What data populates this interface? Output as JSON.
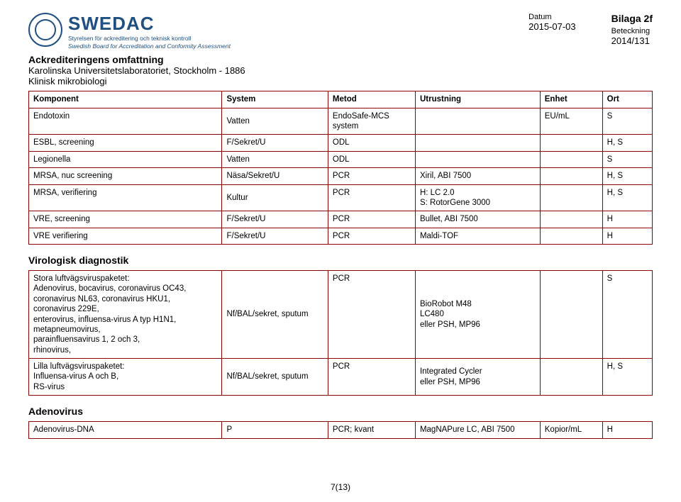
{
  "header": {
    "logo_big": "SWEDAC",
    "logo_sub1": "Styrelsen för ackreditering och teknisk kontroll",
    "logo_sub2": "Swedish Board for Accreditation and Conformity Assessment",
    "bilaga": "Bilaga 2f",
    "datum_label": "Datum",
    "datum_value": "2015-07-03",
    "beteckning_label": "Beteckning",
    "beteckning_value": "2014/131",
    "title": "Ackrediteringens omfattning",
    "line2": "Karolinska Universitetslaboratoriet, Stockholm - 1886",
    "line3": "Klinisk mikrobiologi"
  },
  "table": {
    "headers": [
      "Komponent",
      "System",
      "Metod",
      "Utrustning",
      "Enhet",
      "Ort"
    ],
    "rows": [
      [
        "Endotoxin",
        "Vatten",
        "EndoSafe-MCS system",
        "",
        "EU/mL",
        "S"
      ],
      [
        "ESBL, screening",
        "F/Sekret/U",
        "ODL",
        "",
        "",
        "H, S"
      ],
      [
        "Legionella",
        "Vatten",
        "ODL",
        "",
        "",
        "S"
      ],
      [
        "MRSA, nuc screening",
        "Näsa/Sekret/U",
        "PCR",
        "Xiril, ABI 7500",
        "",
        "H, S"
      ],
      [
        "MRSA, verifiering",
        "Kultur",
        "PCR",
        "H: LC 2.0\nS: RotorGene 3000",
        "",
        "H, S"
      ],
      [
        "VRE, screening",
        "F/Sekret/U",
        "PCR",
        "Bullet, ABI 7500",
        "",
        "H"
      ],
      [
        "VRE verifiering",
        "F/Sekret/U",
        "PCR",
        "Maldi-TOF",
        "",
        "H"
      ]
    ]
  },
  "section2": {
    "title": "Virologisk diagnostik",
    "rows": [
      [
        "Stora luftvägsviruspaketet:\nAdenovirus, bocavirus, coronavirus OC43,\ncoronavirus NL63, coronavirus HKU1,\ncoronavirus 229E,\nenterovirus, influensa-virus A typ H1N1,\nmetapneumovirus,\nparainfluensavirus 1, 2 och 3,\nrhinovirus,",
        "Nf/BAL/sekret, sputum",
        "PCR",
        "BioRobot M48\nLC480\neller PSH, MP96",
        "",
        "S"
      ],
      [
        "Lilla luftvägsviruspaketet:\nInfluensa-virus A och B,\nRS-virus",
        "Nf/BAL/sekret, sputum",
        "PCR",
        "Integrated Cycler\neller PSH, MP96",
        "",
        "H, S"
      ]
    ]
  },
  "section3": {
    "title": "Adenovirus",
    "rows": [
      [
        "Adenovirus-DNA",
        "P",
        "PCR; kvant",
        "MagNAPure LC, ABI 7500",
        "Kopior/mL",
        "H"
      ]
    ]
  },
  "footer": "7(13)",
  "colors": {
    "brand": "#205081",
    "border": "#8b0000"
  }
}
